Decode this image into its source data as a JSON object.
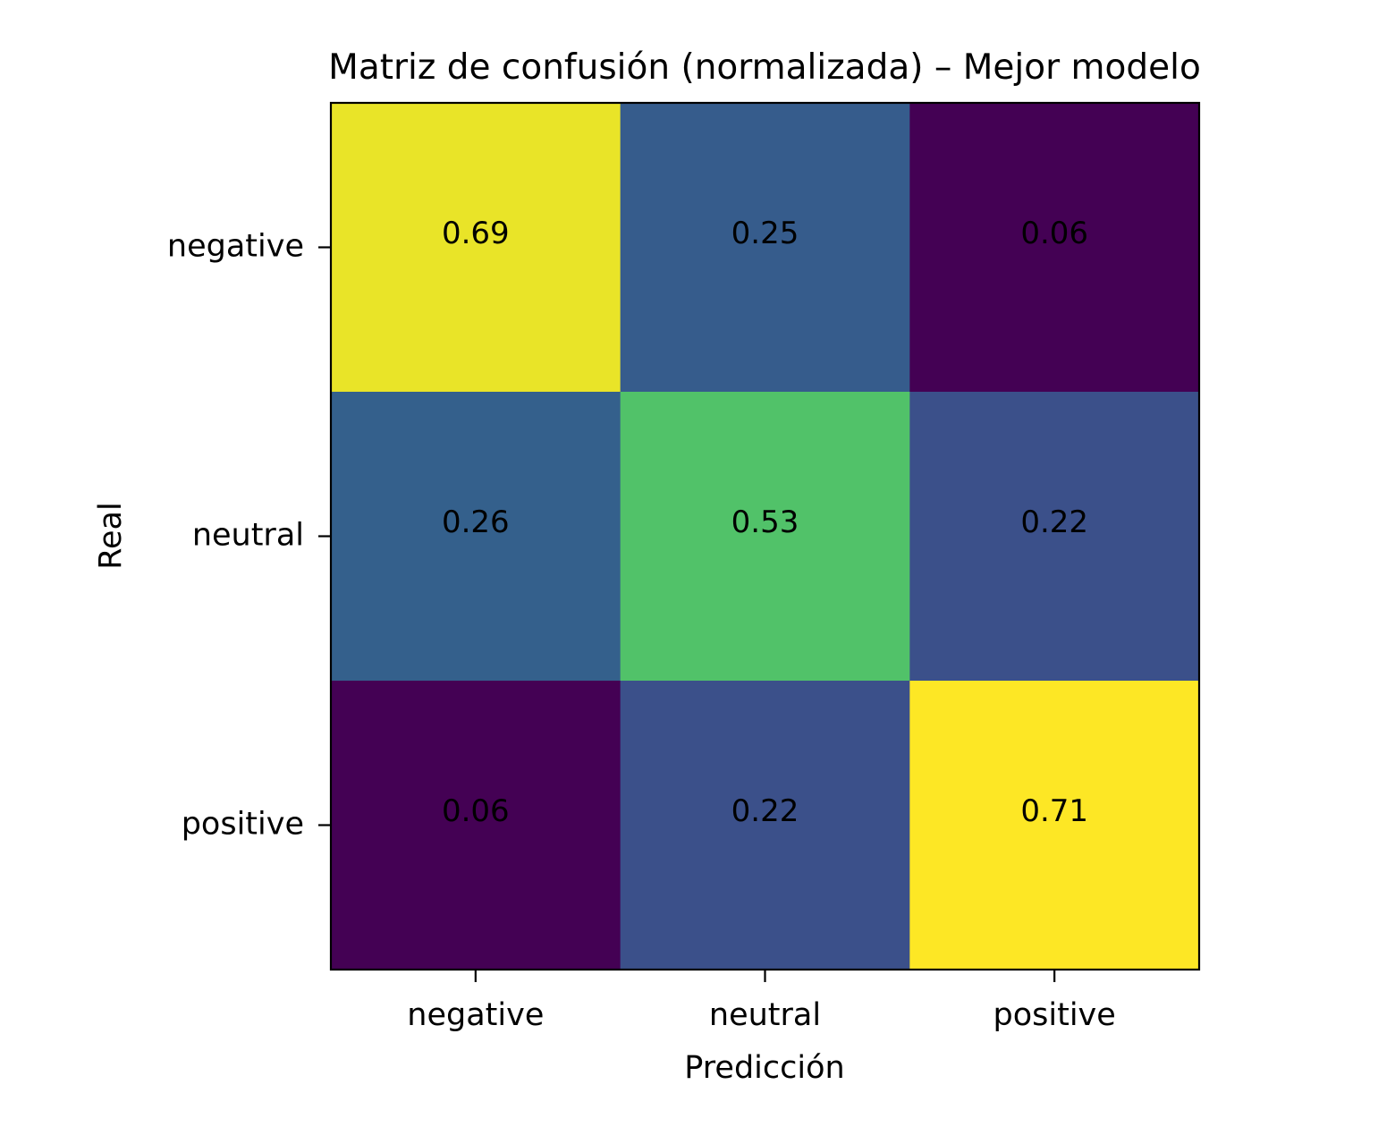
{
  "chart_data": {
    "type": "heatmap",
    "title": "Matriz de confusión (normalizada) – Mejor modelo",
    "xlabel": "Predicción",
    "ylabel": "Real",
    "x_categories": [
      "negative",
      "neutral",
      "positive"
    ],
    "y_categories": [
      "negative",
      "neutral",
      "positive"
    ],
    "values": [
      [
        0.69,
        0.25,
        0.06
      ],
      [
        0.26,
        0.53,
        0.22
      ],
      [
        0.06,
        0.22,
        0.71
      ]
    ],
    "colormap": "viridis",
    "color_range": [
      0.06,
      0.71
    ],
    "grid": false
  }
}
